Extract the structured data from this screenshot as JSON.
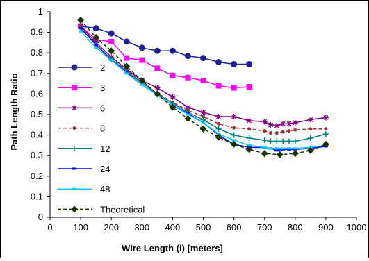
{
  "chart_data": {
    "type": "line",
    "title": "",
    "xlabel": "Wire Length (i) [meters]",
    "ylabel": "Path Length Ratio",
    "xlim": [
      0,
      1000
    ],
    "ylim": [
      0,
      1
    ],
    "xticks": [
      0,
      100,
      200,
      300,
      400,
      500,
      600,
      700,
      800,
      900,
      1000
    ],
    "yticks": [
      0,
      0.1,
      0.2,
      0.3,
      0.4,
      0.5,
      0.6,
      0.7,
      0.8,
      0.9,
      1
    ],
    "ytick_labels": [
      "0",
      "0.1",
      "0.2",
      "0.3",
      "0.4",
      "0.5",
      "0.6",
      "0.7",
      "0.8",
      "0.9",
      "1"
    ],
    "grid": false,
    "legend_position": "left",
    "series": [
      {
        "name": "2",
        "color": "#1f1f99",
        "marker": "circle",
        "dashed": false,
        "points": [
          [
            100,
            0.93
          ],
          [
            150,
            0.92
          ],
          [
            200,
            0.895
          ],
          [
            250,
            0.855
          ],
          [
            300,
            0.825
          ],
          [
            350,
            0.81
          ],
          [
            400,
            0.81
          ],
          [
            450,
            0.785
          ],
          [
            500,
            0.775
          ],
          [
            550,
            0.755
          ],
          [
            600,
            0.745
          ],
          [
            650,
            0.745
          ]
        ]
      },
      {
        "name": "3",
        "color": "#ff00ff",
        "marker": "square",
        "dashed": false,
        "points": [
          [
            100,
            0.93
          ],
          [
            150,
            0.865
          ],
          [
            200,
            0.855
          ],
          [
            250,
            0.775
          ],
          [
            300,
            0.765
          ],
          [
            350,
            0.725
          ],
          [
            400,
            0.69
          ],
          [
            450,
            0.68
          ],
          [
            500,
            0.665
          ],
          [
            550,
            0.64
          ],
          [
            600,
            0.63
          ],
          [
            650,
            0.635
          ]
        ]
      },
      {
        "name": "6",
        "color": "#800080",
        "marker": "star",
        "dashed": false,
        "points": [
          [
            100,
            0.93
          ],
          [
            150,
            0.85
          ],
          [
            200,
            0.78
          ],
          [
            250,
            0.72
          ],
          [
            300,
            0.665
          ],
          [
            350,
            0.63
          ],
          [
            400,
            0.585
          ],
          [
            450,
            0.535
          ],
          [
            500,
            0.51
          ],
          [
            550,
            0.49
          ],
          [
            600,
            0.49
          ],
          [
            650,
            0.47
          ],
          [
            700,
            0.465
          ],
          [
            720,
            0.45
          ],
          [
            740,
            0.445
          ],
          [
            760,
            0.455
          ],
          [
            780,
            0.455
          ],
          [
            800,
            0.46
          ],
          [
            850,
            0.475
          ],
          [
            900,
            0.485
          ]
        ]
      },
      {
        "name": "8",
        "color": "#993333",
        "marker": "dot",
        "dashed": true,
        "points": [
          [
            100,
            0.93
          ],
          [
            150,
            0.84
          ],
          [
            200,
            0.77
          ],
          [
            250,
            0.715
          ],
          [
            300,
            0.655
          ],
          [
            350,
            0.605
          ],
          [
            400,
            0.56
          ],
          [
            450,
            0.52
          ],
          [
            500,
            0.49
          ],
          [
            550,
            0.455
          ],
          [
            600,
            0.435
          ],
          [
            650,
            0.43
          ],
          [
            700,
            0.42
          ],
          [
            720,
            0.41
          ],
          [
            740,
            0.41
          ],
          [
            760,
            0.415
          ],
          [
            780,
            0.42
          ],
          [
            800,
            0.425
          ],
          [
            850,
            0.43
          ],
          [
            900,
            0.43
          ]
        ]
      },
      {
        "name": "12",
        "color": "#008080",
        "marker": "plus",
        "dashed": false,
        "points": [
          [
            100,
            0.92
          ],
          [
            150,
            0.84
          ],
          [
            200,
            0.77
          ],
          [
            250,
            0.71
          ],
          [
            300,
            0.655
          ],
          [
            350,
            0.6
          ],
          [
            400,
            0.555
          ],
          [
            450,
            0.51
          ],
          [
            500,
            0.475
          ],
          [
            550,
            0.43
          ],
          [
            600,
            0.4
          ],
          [
            650,
            0.385
          ],
          [
            700,
            0.375
          ],
          [
            720,
            0.37
          ],
          [
            740,
            0.37
          ],
          [
            760,
            0.37
          ],
          [
            780,
            0.37
          ],
          [
            800,
            0.37
          ],
          [
            850,
            0.385
          ],
          [
            900,
            0.405
          ]
        ]
      },
      {
        "name": "24",
        "color": "#0000ff",
        "marker": "dash",
        "dashed": false,
        "points": [
          [
            100,
            0.92
          ],
          [
            150,
            0.84
          ],
          [
            200,
            0.765
          ],
          [
            250,
            0.705
          ],
          [
            300,
            0.645
          ],
          [
            350,
            0.595
          ],
          [
            400,
            0.545
          ],
          [
            450,
            0.505
          ],
          [
            500,
            0.46
          ],
          [
            550,
            0.4
          ],
          [
            600,
            0.355
          ],
          [
            650,
            0.34
          ],
          [
            700,
            0.34
          ],
          [
            720,
            0.335
          ],
          [
            740,
            0.325
          ],
          [
            760,
            0.33
          ],
          [
            780,
            0.33
          ],
          [
            800,
            0.33
          ],
          [
            850,
            0.335
          ],
          [
            900,
            0.345
          ]
        ]
      },
      {
        "name": "48",
        "color": "#00ccff",
        "marker": "dash",
        "dashed": false,
        "points": [
          [
            100,
            0.905
          ],
          [
            150,
            0.825
          ],
          [
            200,
            0.765
          ],
          [
            250,
            0.7
          ],
          [
            300,
            0.645
          ],
          [
            350,
            0.595
          ],
          [
            400,
            0.545
          ],
          [
            450,
            0.5
          ],
          [
            500,
            0.46
          ],
          [
            550,
            0.405
          ],
          [
            600,
            0.375
          ],
          [
            650,
            0.35
          ],
          [
            700,
            0.34
          ],
          [
            720,
            0.335
          ],
          [
            740,
            0.335
          ],
          [
            760,
            0.335
          ],
          [
            780,
            0.335
          ],
          [
            800,
            0.335
          ],
          [
            850,
            0.34
          ],
          [
            900,
            0.35
          ]
        ]
      },
      {
        "name": "Theoretical",
        "color": "#1a3300",
        "marker": "diamond",
        "dashed": true,
        "points": [
          [
            100,
            0.96
          ],
          [
            150,
            0.875
          ],
          [
            200,
            0.81
          ],
          [
            250,
            0.735
          ],
          [
            300,
            0.665
          ],
          [
            350,
            0.6
          ],
          [
            400,
            0.535
          ],
          [
            450,
            0.48
          ],
          [
            500,
            0.43
          ],
          [
            550,
            0.39
          ],
          [
            600,
            0.355
          ],
          [
            650,
            0.33
          ],
          [
            700,
            0.31
          ],
          [
            750,
            0.305
          ],
          [
            800,
            0.31
          ],
          [
            850,
            0.325
          ],
          [
            900,
            0.355
          ]
        ]
      }
    ]
  }
}
